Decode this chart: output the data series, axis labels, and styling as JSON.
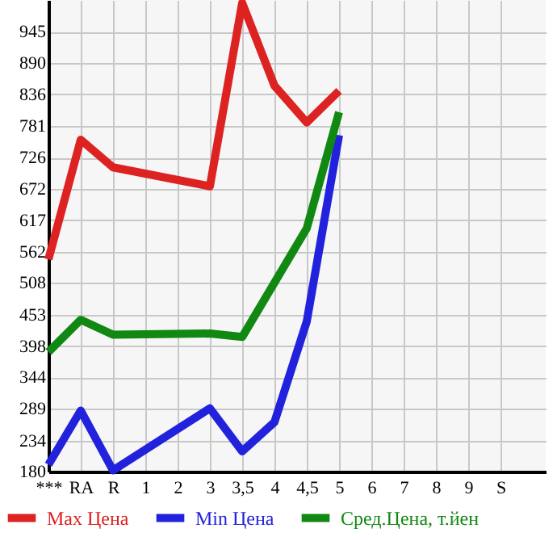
{
  "chart_data": {
    "type": "line",
    "categories": [
      "***",
      "RA",
      "R",
      "1",
      "2",
      "3",
      "3,5",
      "4",
      "4,5",
      "5",
      "6",
      "7",
      "8",
      "9",
      "S"
    ],
    "series": [
      {
        "name": "Max Цена",
        "color": "#dd2222",
        "values": [
          549,
          757,
          709,
          null,
          null,
          676,
          995,
          851,
          787,
          842,
          null,
          null,
          null,
          null,
          null
        ]
      },
      {
        "name": "Min Цена",
        "color": "#2222dd",
        "values": [
          192,
          286,
          182,
          null,
          null,
          290,
          215,
          266,
          441,
          765,
          null,
          null,
          null,
          null,
          null
        ]
      },
      {
        "name": "Сред.Цена, т.йен",
        "color": "#118811",
        "values": [
          388,
          444,
          418,
          null,
          null,
          420,
          414,
          null,
          603,
          805,
          null,
          null,
          null,
          null,
          null
        ]
      }
    ],
    "ylim": [
      180,
      1000
    ],
    "yticks": [
      180,
      234,
      289,
      344,
      398,
      453,
      508,
      562,
      617,
      672,
      726,
      781,
      836,
      890,
      945
    ],
    "grid": true,
    "legend": "bottom",
    "marker": "none",
    "line_style": "solid"
  }
}
